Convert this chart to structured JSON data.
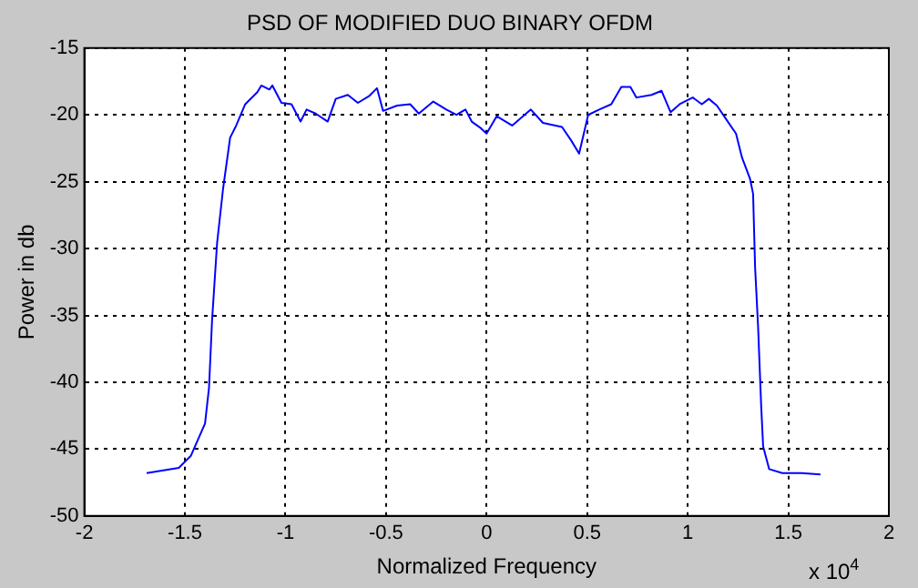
{
  "chart_data": {
    "type": "line",
    "title": "PSD OF MODIFIED DUO BINARY OFDM",
    "xlabel": "Normalized Frequency",
    "ylabel": "Power in db",
    "annotations": [
      "x 10$^{4}$"
    ],
    "x": [
      -1.69,
      -1.53,
      -1.47,
      -1.4,
      -1.38,
      -1.365,
      -1.34,
      -1.31,
      -1.275,
      -1.245,
      -1.2,
      -1.14,
      -1.12,
      -1.08,
      -1.065,
      -1.02,
      -0.97,
      -0.925,
      -0.895,
      -0.85,
      -0.79,
      -0.75,
      -0.69,
      -0.64,
      -0.585,
      -0.545,
      -0.515,
      -0.445,
      -0.38,
      -0.337,
      -0.265,
      -0.2,
      -0.15,
      -0.105,
      -0.074,
      -0.028,
      0.0,
      0.05,
      0.127,
      0.22,
      0.28,
      0.375,
      0.42,
      0.46,
      0.505,
      0.56,
      0.62,
      0.67,
      0.715,
      0.745,
      0.82,
      0.87,
      0.915,
      0.96,
      1.025,
      1.07,
      1.105,
      1.145,
      1.19,
      1.24,
      1.27,
      1.31,
      1.325,
      1.335,
      1.35,
      1.365,
      1.375,
      1.405,
      1.47,
      1.565,
      1.66
    ],
    "series": [
      {
        "color": "#0000ff",
        "values": [
          -46.8,
          -46.4,
          -45.5,
          -43.1,
          -40.4,
          -35.4,
          -29.6,
          -25.5,
          -21.7,
          -20.8,
          -19.2,
          -18.3,
          -17.8,
          -18.1,
          -17.8,
          -19.1,
          -19.2,
          -20.5,
          -19.6,
          -19.9,
          -20.5,
          -18.8,
          -18.5,
          -19.1,
          -18.6,
          -18.0,
          -19.7,
          -19.3,
          -19.2,
          -19.9,
          -19.0,
          -19.6,
          -20.0,
          -19.6,
          -20.5,
          -21.0,
          -21.4,
          -20.1,
          -20.8,
          -19.6,
          -20.6,
          -20.9,
          -21.9,
          -22.9,
          -20.0,
          -19.6,
          -19.2,
          -17.9,
          -17.9,
          -18.7,
          -18.5,
          -18.2,
          -19.8,
          -19.2,
          -18.7,
          -19.2,
          -18.8,
          -19.3,
          -20.3,
          -21.4,
          -23.2,
          -24.8,
          -25.9,
          -31.4,
          -35.9,
          -41.7,
          -44.8,
          -46.5,
          -46.8,
          -46.8,
          -46.9
        ]
      }
    ],
    "xlim": [
      -2,
      2
    ],
    "xticks": [
      -2,
      -1.5,
      -1,
      -0.5,
      0,
      0.5,
      1,
      1.5,
      2
    ],
    "ylim": [
      -50,
      -15
    ],
    "yticks": [
      -50,
      -45,
      -40,
      -35,
      -30,
      -25,
      -20,
      -15
    ],
    "grid": true,
    "line_style": "solid"
  }
}
